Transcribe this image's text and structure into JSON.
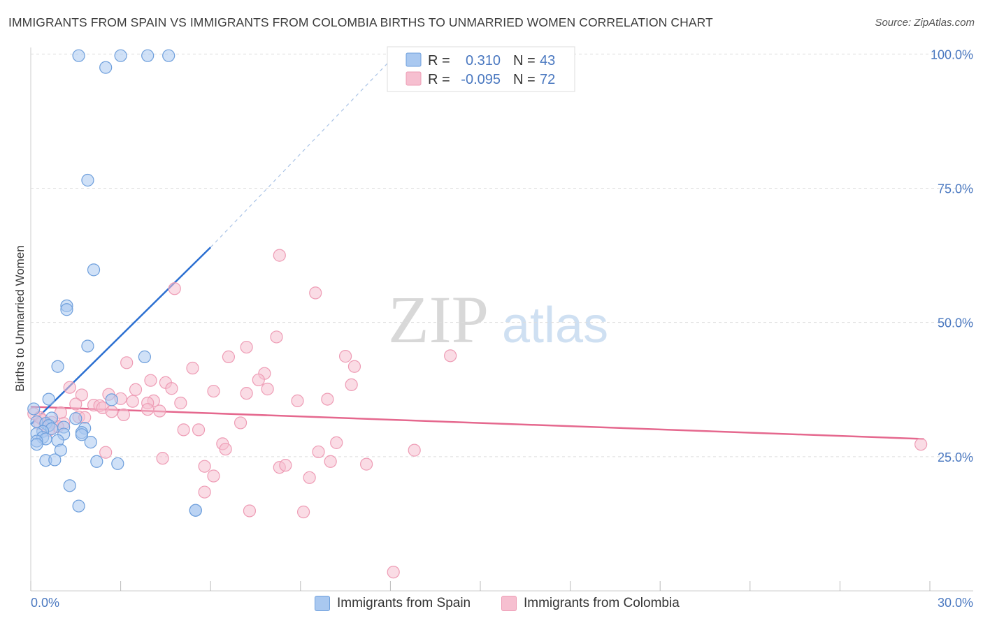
{
  "title": "IMMIGRANTS FROM SPAIN VS IMMIGRANTS FROM COLOMBIA BIRTHS TO UNMARRIED WOMEN CORRELATION CHART",
  "source": "Source: ZipAtlas.com",
  "watermark": {
    "zip": "ZIP",
    "atlas": "atlas"
  },
  "legend": {
    "r_label": "R =",
    "n_label": "N =",
    "spain": {
      "r": "0.310",
      "n": "43"
    },
    "colombia": {
      "r": "-0.095",
      "n": "72"
    }
  },
  "colors": {
    "spain_fill": "#a9c8f0",
    "spain_stroke": "#6e9fdc",
    "spain_line": "#2b6fd1",
    "colombia_fill": "#f6bfd0",
    "colombia_stroke": "#ee9cb5",
    "colombia_line": "#e5688e",
    "grid": "#dddddd",
    "axis_text": "#4a78c0"
  },
  "chart_data": {
    "type": "scatter",
    "title": "IMMIGRANTS FROM SPAIN VS IMMIGRANTS FROM COLOMBIA BIRTHS TO UNMARRIED WOMEN CORRELATION CHART",
    "xlabel": "",
    "ylabel": "Births to Unmarried Women",
    "xlim": [
      0,
      30
    ],
    "ylim": [
      0,
      102
    ],
    "x_tick_labels": [
      "0.0%",
      "30.0%"
    ],
    "y_ticks": [
      25,
      50,
      75,
      100
    ],
    "y_tick_labels": [
      "25.0%",
      "50.0%",
      "75.0%",
      "100.0%"
    ],
    "grid": true,
    "legend_position": "top-center",
    "series": [
      {
        "name": "Immigrants from Spain",
        "r": 0.31,
        "n": 43,
        "trend": {
          "x0": 0.0,
          "y0": 31.0,
          "x1": 6.0,
          "y1": 64.0,
          "dashed_to_x": 12.2,
          "dashed_to_y": 100.0
        },
        "points": [
          [
            1.6,
            99.7
          ],
          [
            3.0,
            99.7
          ],
          [
            3.9,
            99.7
          ],
          [
            4.6,
            99.7
          ],
          [
            2.5,
            97.5
          ],
          [
            1.9,
            76.5
          ],
          [
            2.1,
            59.8
          ],
          [
            1.2,
            53.1
          ],
          [
            1.2,
            52.4
          ],
          [
            1.9,
            45.6
          ],
          [
            3.8,
            43.6
          ],
          [
            0.9,
            41.8
          ],
          [
            0.6,
            35.7
          ],
          [
            2.7,
            35.6
          ],
          [
            0.1,
            33.9
          ],
          [
            0.7,
            32.2
          ],
          [
            1.5,
            32.1
          ],
          [
            0.2,
            31.5
          ],
          [
            0.5,
            31.2
          ],
          [
            0.6,
            30.8
          ],
          [
            0.7,
            30.2
          ],
          [
            1.1,
            30.5
          ],
          [
            1.8,
            30.3
          ],
          [
            0.4,
            29.7
          ],
          [
            0.2,
            29.3
          ],
          [
            1.1,
            29.2
          ],
          [
            0.4,
            28.6
          ],
          [
            1.7,
            29.5
          ],
          [
            1.7,
            29.1
          ],
          [
            0.5,
            28.3
          ],
          [
            0.9,
            28.0
          ],
          [
            0.2,
            27.9
          ],
          [
            2.0,
            27.7
          ],
          [
            0.2,
            27.3
          ],
          [
            1.0,
            26.2
          ],
          [
            0.5,
            24.3
          ],
          [
            0.8,
            24.4
          ],
          [
            2.2,
            24.1
          ],
          [
            2.9,
            23.7
          ],
          [
            1.3,
            19.6
          ],
          [
            1.6,
            15.8
          ],
          [
            5.5,
            15.0
          ],
          [
            5.5,
            15.0
          ]
        ]
      },
      {
        "name": "Immigrants from Colombia",
        "r": -0.095,
        "n": 72,
        "trend": {
          "x0": 0.0,
          "y0": 34.3,
          "x1": 29.8,
          "y1": 28.3
        },
        "points": [
          [
            8.3,
            62.5
          ],
          [
            9.5,
            55.5
          ],
          [
            4.8,
            56.3
          ],
          [
            7.2,
            45.4
          ],
          [
            8.2,
            47.3
          ],
          [
            14.0,
            43.8
          ],
          [
            6.6,
            43.6
          ],
          [
            10.5,
            43.7
          ],
          [
            3.2,
            42.5
          ],
          [
            10.8,
            41.8
          ],
          [
            5.4,
            41.5
          ],
          [
            7.8,
            40.5
          ],
          [
            4.0,
            39.2
          ],
          [
            4.5,
            38.8
          ],
          [
            7.6,
            39.3
          ],
          [
            10.7,
            38.4
          ],
          [
            1.3,
            37.9
          ],
          [
            4.7,
            37.7
          ],
          [
            7.9,
            37.6
          ],
          [
            3.5,
            37.5
          ],
          [
            6.1,
            37.2
          ],
          [
            7.2,
            36.8
          ],
          [
            1.7,
            36.5
          ],
          [
            2.6,
            36.6
          ],
          [
            3.0,
            35.8
          ],
          [
            9.9,
            35.7
          ],
          [
            8.9,
            35.4
          ],
          [
            4.1,
            35.4
          ],
          [
            3.4,
            35.3
          ],
          [
            3.9,
            35.0
          ],
          [
            5.0,
            35.0
          ],
          [
            1.5,
            34.8
          ],
          [
            2.1,
            34.6
          ],
          [
            2.3,
            34.5
          ],
          [
            2.4,
            34.1
          ],
          [
            2.7,
            33.4
          ],
          [
            3.9,
            33.8
          ],
          [
            4.3,
            33.5
          ],
          [
            1.0,
            33.2
          ],
          [
            0.1,
            33.0
          ],
          [
            3.1,
            32.8
          ],
          [
            1.6,
            32.4
          ],
          [
            1.8,
            32.3
          ],
          [
            0.4,
            31.8
          ],
          [
            0.7,
            31.4
          ],
          [
            0.3,
            31.1
          ],
          [
            1.1,
            31.2
          ],
          [
            7.0,
            31.3
          ],
          [
            0.9,
            30.6
          ],
          [
            0.6,
            29.9
          ],
          [
            5.1,
            30.0
          ],
          [
            5.6,
            30.0
          ],
          [
            6.4,
            27.4
          ],
          [
            10.2,
            27.6
          ],
          [
            6.5,
            26.4
          ],
          [
            12.8,
            26.2
          ],
          [
            9.6,
            25.9
          ],
          [
            2.5,
            25.8
          ],
          [
            4.4,
            24.7
          ],
          [
            10.0,
            24.1
          ],
          [
            11.2,
            23.6
          ],
          [
            5.8,
            23.2
          ],
          [
            8.3,
            23.0
          ],
          [
            8.5,
            23.4
          ],
          [
            6.1,
            21.4
          ],
          [
            9.3,
            21.1
          ],
          [
            5.8,
            18.4
          ],
          [
            7.3,
            14.9
          ],
          [
            9.1,
            14.7
          ],
          [
            12.1,
            3.5
          ],
          [
            29.7,
            27.3
          ],
          [
            0.3,
            32.3
          ]
        ]
      }
    ]
  }
}
